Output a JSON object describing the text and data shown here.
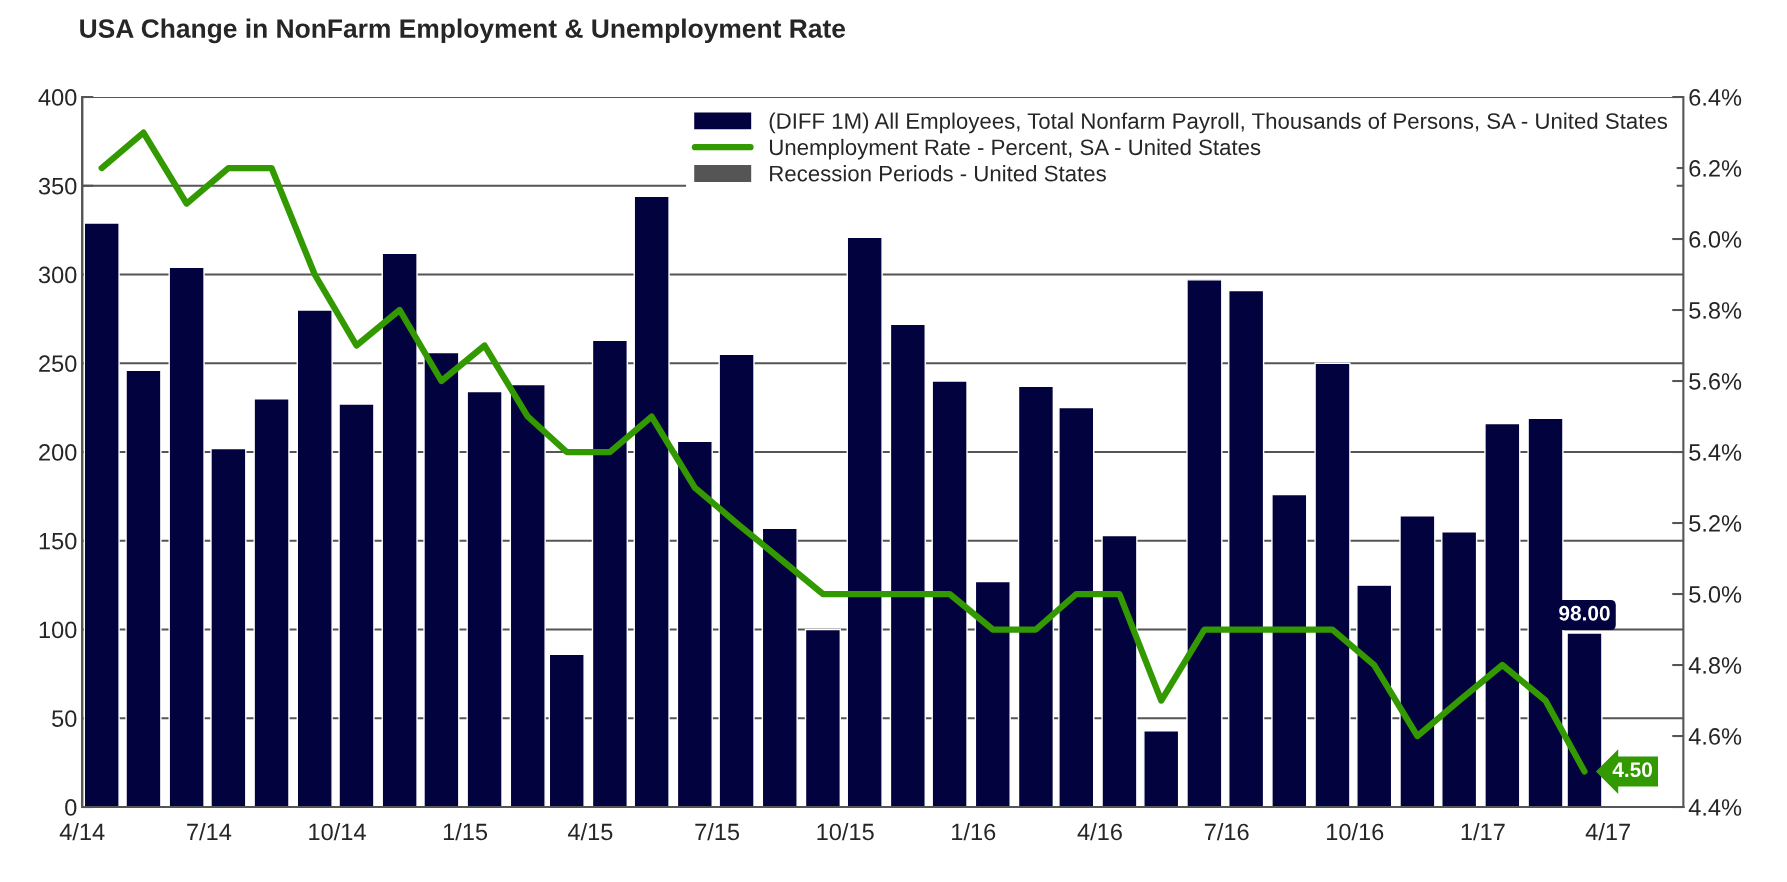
{
  "chart_data": {
    "type": "bar",
    "title": "USA Change in NonFarm Employment & Unemployment Rate",
    "x": [
      "2014-04-15",
      "2014-05-15",
      "2014-06-15",
      "2014-07-15",
      "2014-08-15",
      "2014-09-15",
      "2014-10-15",
      "2014-11-15",
      "2014-12-15",
      "2015-01-15",
      "2015-02-15",
      "2015-03-15",
      "2015-04-15",
      "2015-05-15",
      "2015-06-15",
      "2015-07-15",
      "2015-08-15",
      "2015-09-15",
      "2015-10-15",
      "2015-11-15",
      "2015-12-15",
      "2016-01-15",
      "2016-02-15",
      "2016-03-15",
      "2016-04-15",
      "2016-05-15",
      "2016-06-15",
      "2016-07-15",
      "2016-08-15",
      "2016-09-15",
      "2016-10-15",
      "2016-11-15",
      "2016-12-15",
      "2017-01-15",
      "2017-02-15",
      "2017-03-15"
    ],
    "series": [
      {
        "name": "(DIFF 1M) All Employees, Total Nonfarm Payroll, Thousands of Persons, SA - United States",
        "color": "#02023f",
        "values": [
          329,
          246,
          304,
          202,
          230,
          280,
          227,
          312,
          256,
          234,
          238,
          86,
          263,
          344,
          206,
          255,
          157,
          100,
          321,
          272,
          240,
          127,
          237,
          225,
          153,
          43,
          297,
          291,
          176,
          250,
          125,
          164,
          155,
          216,
          219,
          98
        ],
        "value_labels": [
          null,
          null,
          null,
          null,
          null,
          null,
          null,
          null,
          null,
          null,
          null,
          null,
          null,
          null,
          null,
          null,
          null,
          null,
          null,
          null,
          null,
          null,
          null,
          null,
          null,
          null,
          null,
          null,
          null,
          null,
          null,
          null,
          null,
          null,
          null,
          "98.00"
        ]
      },
      {
        "name": "Unemployment Rate - Percent, SA - United States",
        "type": "line",
        "axis": "y2",
        "color": "#339900",
        "values": [
          6.2,
          6.3,
          6.1,
          6.2,
          6.2,
          5.9,
          5.7,
          5.8,
          5.6,
          5.7,
          5.5,
          5.4,
          5.4,
          5.5,
          5.3,
          5.2,
          5.1,
          5.0,
          5.0,
          5.0,
          5.0,
          4.9,
          4.9,
          5.0,
          5.0,
          4.7,
          4.9,
          4.9,
          4.9,
          4.9,
          4.8,
          4.6,
          4.7,
          4.8,
          4.7,
          4.5
        ],
        "value_labels": [
          null,
          null,
          null,
          null,
          null,
          null,
          null,
          null,
          null,
          null,
          null,
          null,
          null,
          null,
          null,
          null,
          null,
          null,
          null,
          null,
          null,
          null,
          null,
          null,
          null,
          null,
          null,
          null,
          null,
          null,
          null,
          null,
          null,
          null,
          null,
          "4.50"
        ]
      },
      {
        "name": "Recession Periods - United States",
        "color": "#555555",
        "values": [
          null,
          null,
          null,
          null,
          null,
          null,
          null,
          null,
          null,
          null,
          null,
          null,
          null,
          null,
          null,
          null,
          null,
          null,
          null,
          null,
          null,
          null,
          null,
          null,
          null,
          null,
          null,
          null,
          null,
          null,
          null,
          null,
          null,
          null,
          null,
          null
        ]
      }
    ],
    "xlim": [
      "2014-04-01",
      "2017-05-25"
    ],
    "xticks": [
      {
        "value": "2014-04-01",
        "label": "4/14"
      },
      {
        "value": "2014-07-01",
        "label": "7/14"
      },
      {
        "value": "2014-10-01",
        "label": "10/14"
      },
      {
        "value": "2015-01-01",
        "label": "1/15"
      },
      {
        "value": "2015-04-01",
        "label": "4/15"
      },
      {
        "value": "2015-07-01",
        "label": "7/15"
      },
      {
        "value": "2015-10-01",
        "label": "10/15"
      },
      {
        "value": "2016-01-01",
        "label": "1/16"
      },
      {
        "value": "2016-04-01",
        "label": "4/16"
      },
      {
        "value": "2016-07-01",
        "label": "7/16"
      },
      {
        "value": "2016-10-01",
        "label": "10/16"
      },
      {
        "value": "2017-01-01",
        "label": "1/17"
      },
      {
        "value": "2017-04-01",
        "label": "4/17"
      }
    ],
    "ylim": [
      0,
      400
    ],
    "yticks": [
      0,
      50,
      100,
      150,
      200,
      250,
      300,
      350,
      400
    ],
    "y2lim": [
      4.4,
      6.4
    ],
    "y2ticks": [
      {
        "value": 4.4,
        "label": "4.4%"
      },
      {
        "value": 4.6,
        "label": "4.6%"
      },
      {
        "value": 4.8,
        "label": "4.8%"
      },
      {
        "value": 5.0,
        "label": "5.0%"
      },
      {
        "value": 5.2,
        "label": "5.2%"
      },
      {
        "value": 5.4,
        "label": "5.4%"
      },
      {
        "value": 5.6,
        "label": "5.6%"
      },
      {
        "value": 5.8,
        "label": "5.8%"
      },
      {
        "value": 6.0,
        "label": "6.0%"
      },
      {
        "value": 6.2,
        "label": "6.2%"
      },
      {
        "value": 6.4,
        "label": "6.4%"
      }
    ],
    "grid": "y",
    "legend": "top right"
  }
}
